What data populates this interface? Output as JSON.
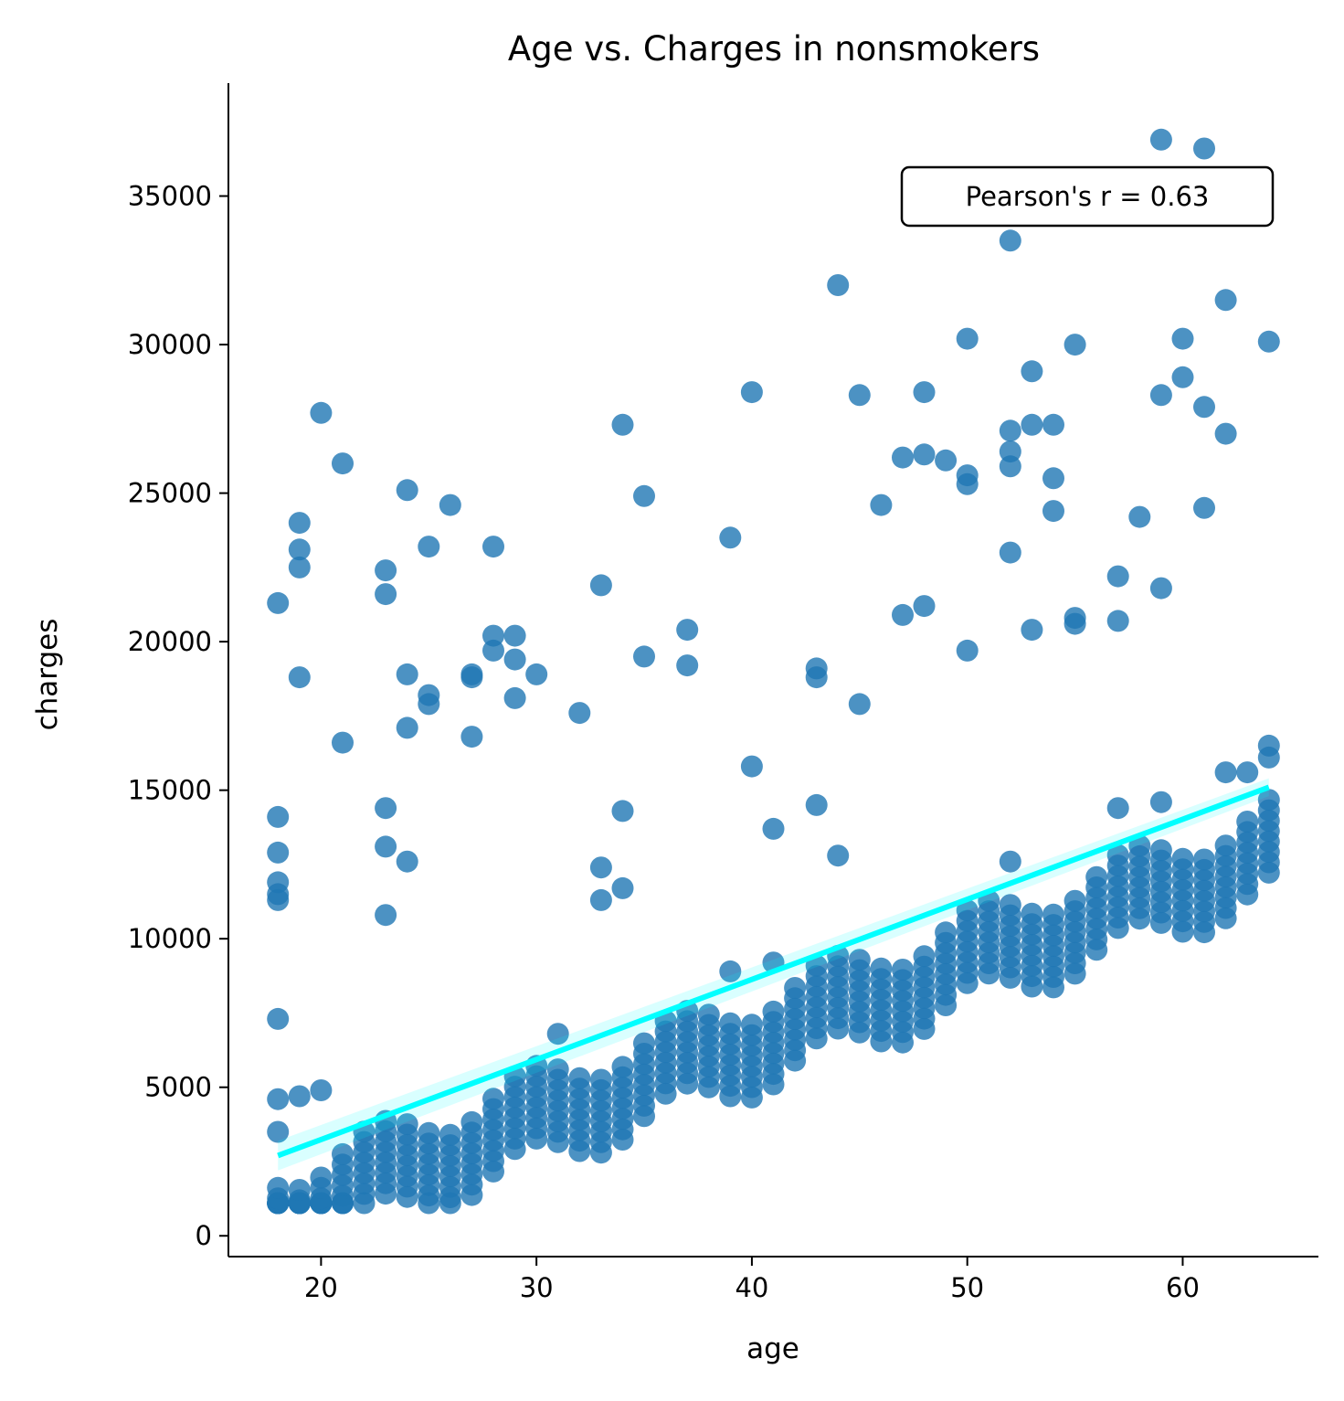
{
  "chart_data": {
    "type": "scatter",
    "title": "Age vs. Charges in nonsmokers",
    "xlabel": "age",
    "ylabel": "charges",
    "xlim": [
      15.7,
      66.3
    ],
    "ylim": [
      -700,
      38800
    ],
    "xticks": [
      20,
      30,
      40,
      50,
      60
    ],
    "yticks": [
      0,
      5000,
      10000,
      15000,
      20000,
      25000,
      30000,
      35000
    ],
    "grid": false,
    "colors": {
      "points": "#1f77b4",
      "fit_line": "#00ffff"
    },
    "annotation": {
      "text": "Pearson's r = 0.63",
      "position": "top-right"
    },
    "fit_line": {
      "x": [
        18,
        64
      ],
      "y": [
        2700,
        15100
      ]
    },
    "band": {
      "slope": 265,
      "min_age": 18,
      "max_age": 64,
      "offsets": [
        -1500,
        -1150,
        -800,
        -450,
        -100,
        250,
        600,
        950
      ]
    },
    "outliers": [
      [
        18,
        21300
      ],
      [
        18,
        14100
      ],
      [
        18,
        12900
      ],
      [
        18,
        11900
      ],
      [
        18,
        11500
      ],
      [
        18,
        11300
      ],
      [
        18,
        7300
      ],
      [
        18,
        4600
      ],
      [
        18,
        3500
      ],
      [
        19,
        24000
      ],
      [
        19,
        23100
      ],
      [
        19,
        22500
      ],
      [
        19,
        18800
      ],
      [
        19,
        4700
      ],
      [
        20,
        27700
      ],
      [
        20,
        4900
      ],
      [
        21,
        26000
      ],
      [
        21,
        16600
      ],
      [
        23,
        22400
      ],
      [
        23,
        21600
      ],
      [
        23,
        14400
      ],
      [
        23,
        13100
      ],
      [
        23,
        10800
      ],
      [
        24,
        25100
      ],
      [
        24,
        18900
      ],
      [
        24,
        17100
      ],
      [
        24,
        12600
      ],
      [
        25,
        23200
      ],
      [
        25,
        18200
      ],
      [
        25,
        17900
      ],
      [
        26,
        24600
      ],
      [
        27,
        18900
      ],
      [
        27,
        18800
      ],
      [
        27,
        16800
      ],
      [
        28,
        23200
      ],
      [
        28,
        20200
      ],
      [
        28,
        19700
      ],
      [
        29,
        20200
      ],
      [
        29,
        19400
      ],
      [
        29,
        18100
      ],
      [
        30,
        18900
      ],
      [
        31,
        6800
      ],
      [
        32,
        17600
      ],
      [
        33,
        21900
      ],
      [
        33,
        12400
      ],
      [
        33,
        11300
      ],
      [
        34,
        27300
      ],
      [
        34,
        14300
      ],
      [
        34,
        11700
      ],
      [
        35,
        24900
      ],
      [
        35,
        19500
      ],
      [
        37,
        20400
      ],
      [
        37,
        19200
      ],
      [
        39,
        23500
      ],
      [
        39,
        8900
      ],
      [
        40,
        28400
      ],
      [
        40,
        15800
      ],
      [
        41,
        13700
      ],
      [
        41,
        9200
      ],
      [
        43,
        19100
      ],
      [
        43,
        18800
      ],
      [
        43,
        14500
      ],
      [
        44,
        32000
      ],
      [
        44,
        12800
      ],
      [
        45,
        28300
      ],
      [
        45,
        17900
      ],
      [
        46,
        24600
      ],
      [
        47,
        26200
      ],
      [
        47,
        20900
      ],
      [
        48,
        28400
      ],
      [
        48,
        26300
      ],
      [
        48,
        21200
      ],
      [
        49,
        26100
      ],
      [
        50,
        30200
      ],
      [
        50,
        25600
      ],
      [
        50,
        25300
      ],
      [
        50,
        19700
      ],
      [
        52,
        33500
      ],
      [
        52,
        27100
      ],
      [
        52,
        26400
      ],
      [
        52,
        25900
      ],
      [
        52,
        23000
      ],
      [
        52,
        12600
      ],
      [
        53,
        29100
      ],
      [
        53,
        27300
      ],
      [
        53,
        20400
      ],
      [
        54,
        27300
      ],
      [
        54,
        25500
      ],
      [
        54,
        24400
      ],
      [
        55,
        30000
      ],
      [
        55,
        20800
      ],
      [
        55,
        20600
      ],
      [
        57,
        22200
      ],
      [
        57,
        20700
      ],
      [
        57,
        14400
      ],
      [
        58,
        24200
      ],
      [
        59,
        36900
      ],
      [
        59,
        28300
      ],
      [
        59,
        21800
      ],
      [
        59,
        14600
      ],
      [
        60,
        30200
      ],
      [
        60,
        28900
      ],
      [
        61,
        36600
      ],
      [
        61,
        27900
      ],
      [
        61,
        24500
      ],
      [
        62,
        31500
      ],
      [
        62,
        27000
      ],
      [
        62,
        15600
      ],
      [
        63,
        15600
      ],
      [
        64,
        30100
      ],
      [
        64,
        16500
      ],
      [
        64,
        16100
      ]
    ]
  }
}
